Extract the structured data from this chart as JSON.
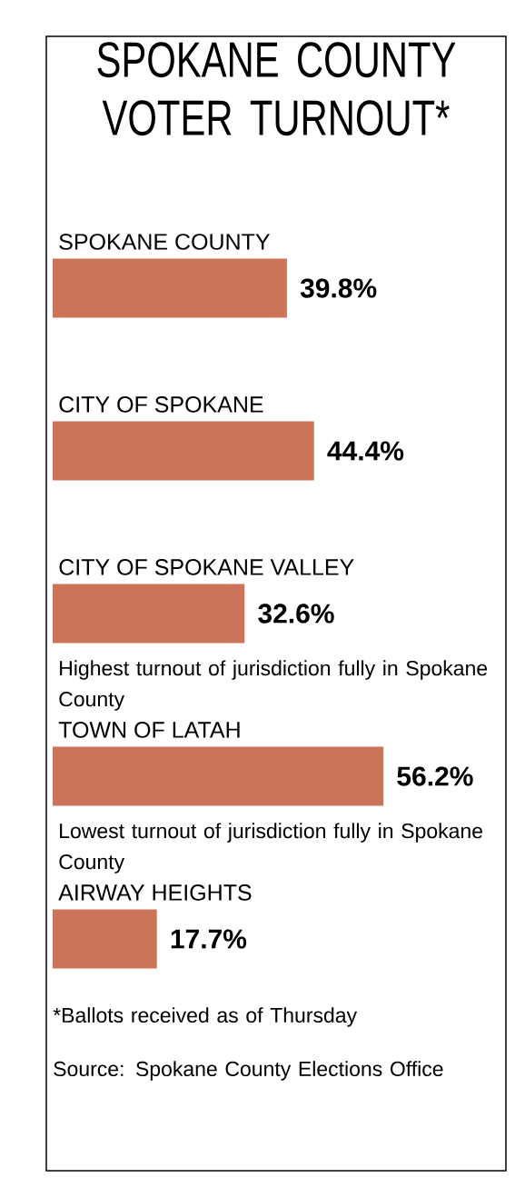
{
  "chart_data": {
    "type": "bar",
    "orientation": "horizontal",
    "title": "SPOKANE COUNTY VOTER TURNOUT*",
    "categories": [
      "SPOKANE COUNTY",
      "CITY OF SPOKANE",
      "CITY OF SPOKANE VALLEY",
      "TOWN OF LATAH",
      "AIRWAY HEIGHTS"
    ],
    "values": [
      39.8,
      44.4,
      32.6,
      56.2,
      17.7
    ],
    "value_labels": [
      "39.8%",
      "44.4%",
      "32.6%",
      "56.2%",
      "17.7%"
    ],
    "color": "#cc7459",
    "annotations": [
      "Highest turnout of jurisdiction fully in Spokane County",
      "Lowest turnout of jurisdiction fully in Spokane County",
      "*Ballots received as of Thursday",
      "Source: Spokane County Elections Office"
    ]
  }
}
